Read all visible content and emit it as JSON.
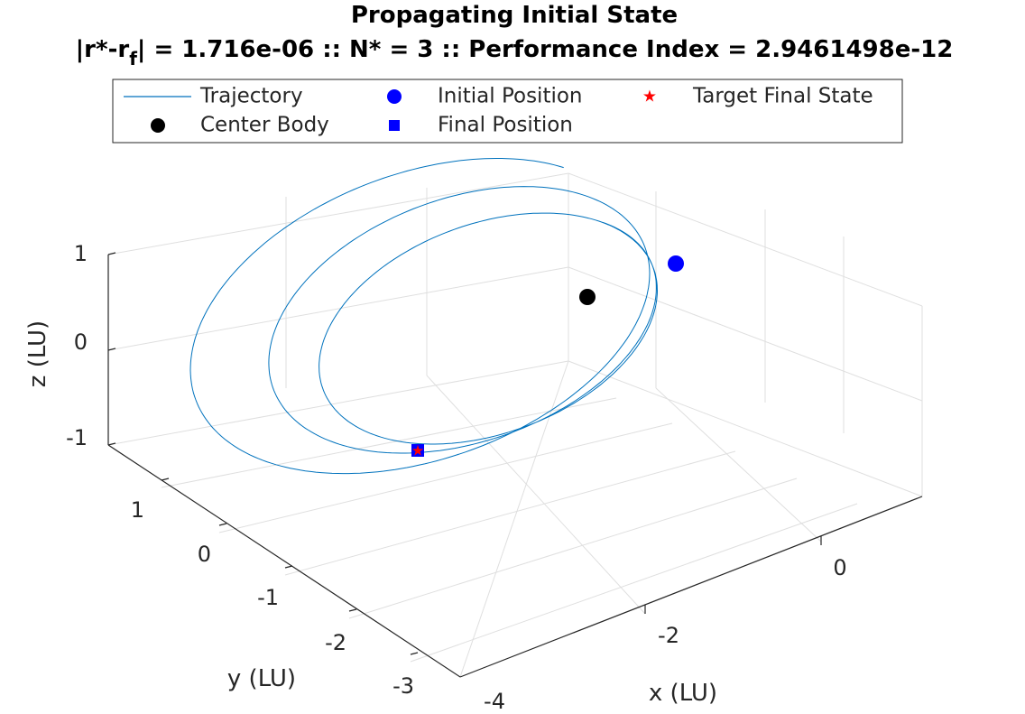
{
  "chart_data": {
    "type": "line",
    "title": "Propagating Initial State",
    "subtitle_prefix": "|r*-r",
    "subtitle_sub": "f",
    "subtitle_rest": "| = 1.716e-06 :: N* = 3 :: Performance Index = 2.9461498e-12",
    "xlabel": "x (LU)",
    "ylabel": "y (LU)",
    "zlabel": "z (LU)",
    "xticks": [
      "-4",
      "-2",
      "0"
    ],
    "yticks": [
      "1",
      "0",
      "-1",
      "-2",
      "-3"
    ],
    "zticks": [
      "1",
      "0",
      "-1"
    ],
    "xlim": [
      -4,
      1
    ],
    "ylim": [
      -3,
      1.5
    ],
    "zlim": [
      -1,
      1
    ],
    "grid": true,
    "legend_placement": "top",
    "legend": [
      {
        "label": "Trajectory",
        "marker": "line",
        "color": "#0072bd"
      },
      {
        "label": "Initial Position",
        "marker": "circle",
        "color": "#0000ff"
      },
      {
        "label": "Target Final State",
        "marker": "star",
        "color": "#ff0000"
      },
      {
        "label": "Center Body",
        "marker": "circle",
        "color": "#000000"
      },
      {
        "label": "Final Position",
        "marker": "square",
        "color": "#0000ff"
      }
    ],
    "trajectory": {
      "revolutions": 3,
      "orbits": [
        {
          "cx": -1.7,
          "cy": 0.45,
          "cz": 0.0,
          "a": 2.3,
          "b": 1.45
        },
        {
          "cx": -1.45,
          "cy": 0.2,
          "cz": 0.0,
          "a": 1.95,
          "b": 1.25
        },
        {
          "cx": -1.2,
          "cy": -0.05,
          "cz": 0.0,
          "a": 1.6,
          "b": 1.05
        }
      ]
    },
    "points": {
      "initial_position": {
        "x": -0.45,
        "y": 1.2,
        "z": 0.45
      },
      "center_body": {
        "x": -1.0,
        "y": 0.45,
        "z": 0.3
      },
      "final_position": {
        "x": -2.2,
        "y": -1.0,
        "z": -0.6
      },
      "target_final_state": {
        "x": -2.2,
        "y": -1.0,
        "z": -0.6
      }
    }
  }
}
